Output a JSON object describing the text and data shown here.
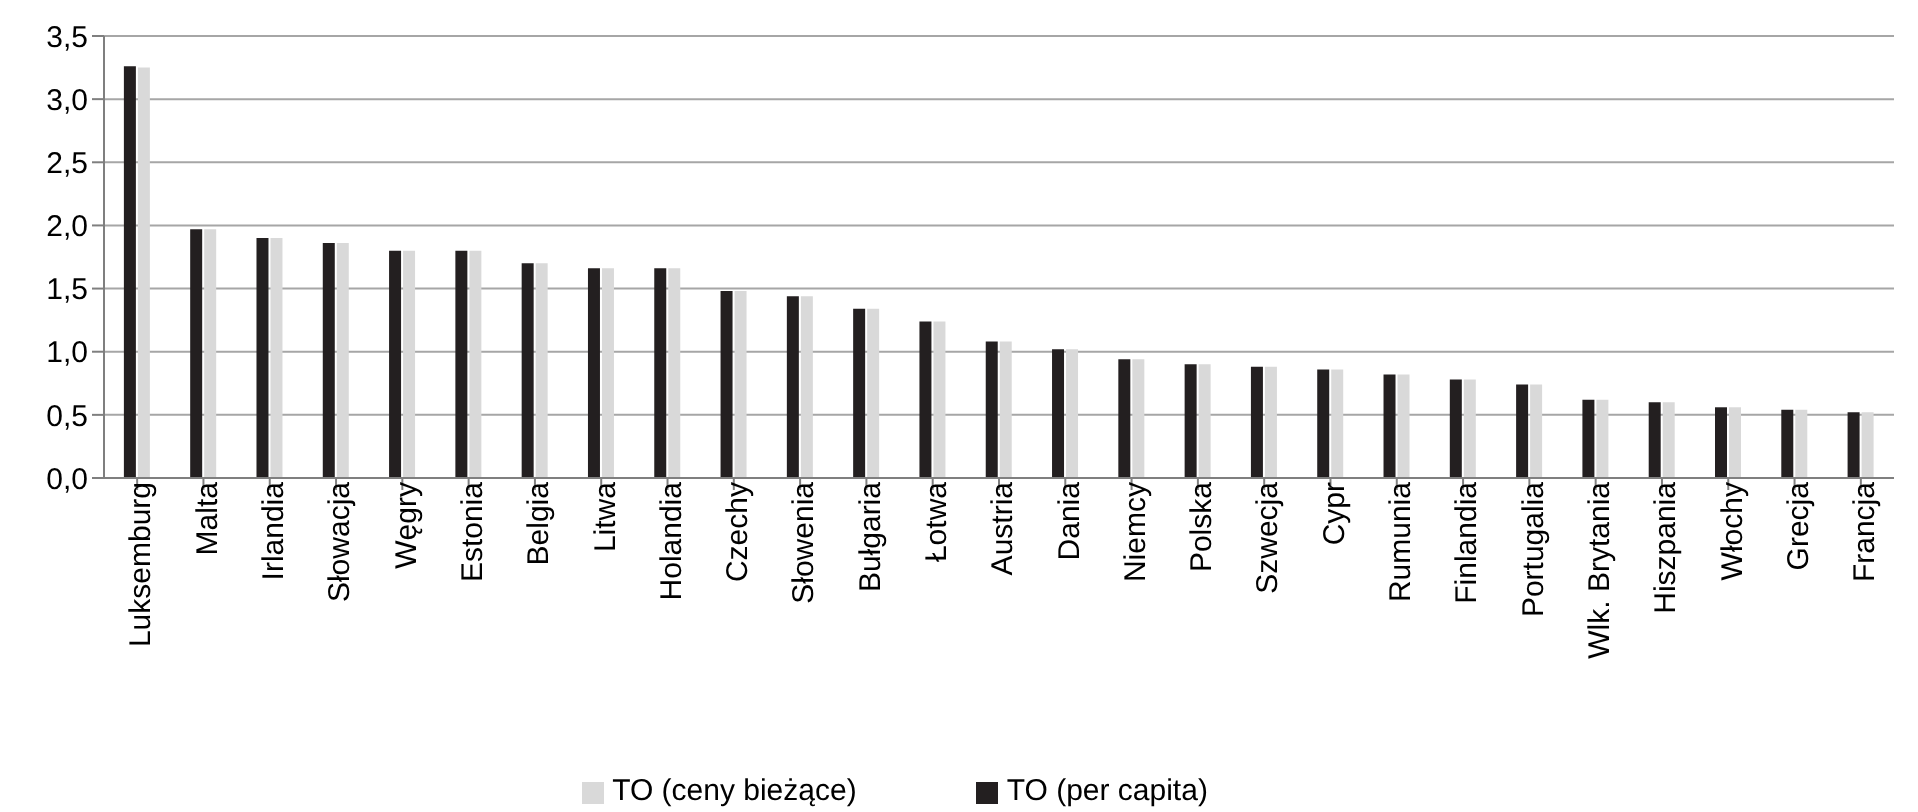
{
  "chart_data": {
    "type": "bar",
    "categories": [
      "Luksemburg",
      "Malta",
      "Irlandia",
      "Słowacja",
      "Węgry",
      "Estonia",
      "Belgia",
      "Litwa",
      "Holandia",
      "Czechy",
      "Słowenia",
      "Bułgaria",
      "Łotwa",
      "Austria",
      "Dania",
      "Niemcy",
      "Polska",
      "Szwecja",
      "Cypr",
      "Rumunia",
      "Finlandia",
      "Portugalia",
      "Wlk. Brytania",
      "Hiszpania",
      "Włochy",
      "Grecja",
      "Francja"
    ],
    "series": [
      {
        "name": "TO (per capita)",
        "color": "#231f20",
        "values": [
          3.26,
          1.97,
          1.9,
          1.86,
          1.8,
          1.8,
          1.7,
          1.66,
          1.66,
          1.48,
          1.44,
          1.34,
          1.24,
          1.08,
          1.02,
          0.94,
          0.9,
          0.88,
          0.86,
          0.82,
          0.78,
          0.74,
          0.62,
          0.6,
          0.56,
          0.54,
          0.52
        ]
      },
      {
        "name": "TO (ceny bieżące)",
        "color": "#d9d9d9",
        "values": [
          3.25,
          1.97,
          1.9,
          1.86,
          1.8,
          1.8,
          1.7,
          1.66,
          1.66,
          1.48,
          1.44,
          1.34,
          1.24,
          1.08,
          1.02,
          0.94,
          0.9,
          0.88,
          0.86,
          0.82,
          0.78,
          0.74,
          0.62,
          0.6,
          0.56,
          0.54,
          0.52
        ]
      }
    ],
    "ylim": [
      0,
      3.5
    ],
    "yticks": [
      {
        "value": 0,
        "label": "0,0"
      },
      {
        "value": 0.5,
        "label": "0,5"
      },
      {
        "value": 1,
        "label": "1,0"
      },
      {
        "value": 1.5,
        "label": "1,5"
      },
      {
        "value": 2,
        "label": "2,0"
      },
      {
        "value": 2.5,
        "label": "2,5"
      },
      {
        "value": 3,
        "label": "3,0"
      },
      {
        "value": 3.5,
        "label": "3,5"
      }
    ],
    "grid": "y",
    "legend": "bottom"
  }
}
